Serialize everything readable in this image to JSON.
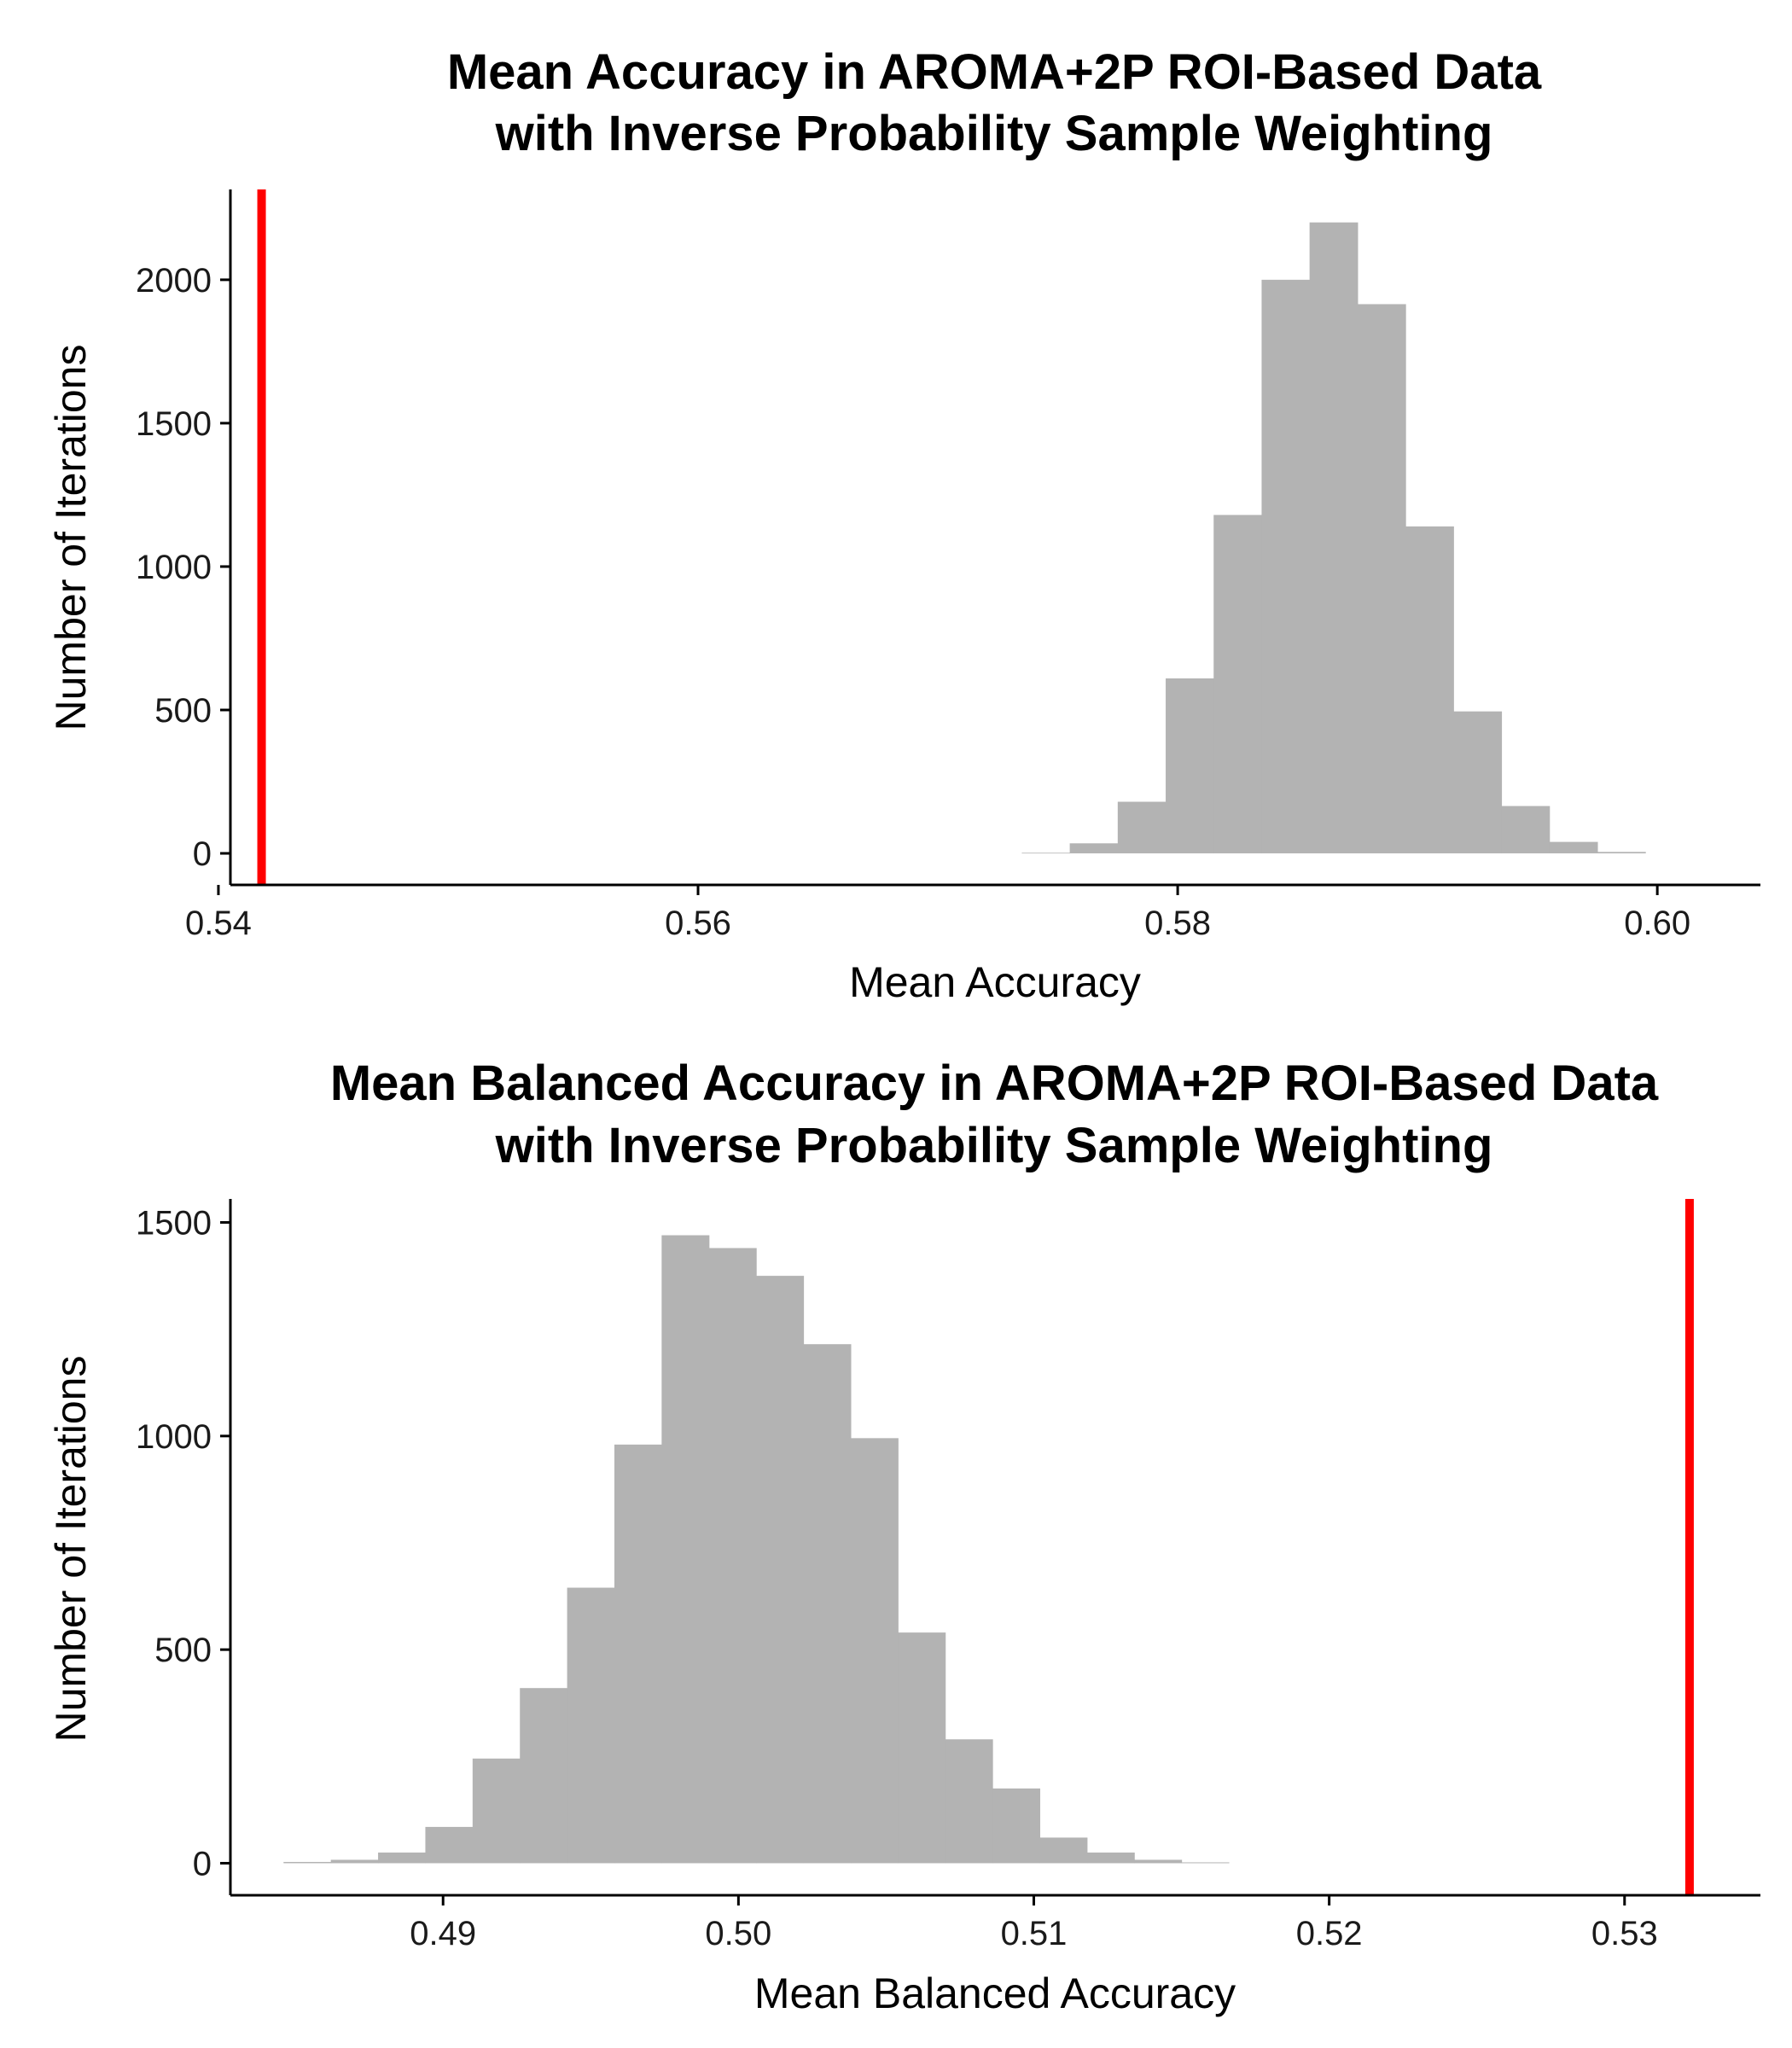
{
  "chart_data": [
    {
      "type": "bar",
      "title_lines": [
        "Mean Accuracy in AROMA+2P ROI-Based Data",
        "with Inverse Probability Sample Weighting"
      ],
      "xlabel": "Mean Accuracy",
      "ylabel": "Number of Iterations",
      "xlim": [
        0.5405,
        0.6043
      ],
      "ylim": [
        -110,
        2315
      ],
      "x_ticks": [
        0.54,
        0.56,
        0.58,
        0.6
      ],
      "x_tick_labels": [
        "0.54",
        "0.56",
        "0.58",
        "0.60"
      ],
      "y_ticks": [
        0,
        500,
        1000,
        1500,
        2000
      ],
      "y_tick_labels": [
        "0",
        "500",
        "1000",
        "1500",
        "2000"
      ],
      "bin_edges": [
        0.5735,
        0.5755,
        0.5775,
        0.5795,
        0.5815,
        0.5835,
        0.5855,
        0.5875,
        0.5895,
        0.5915,
        0.5935,
        0.5955,
        0.5975,
        0.5995
      ],
      "counts": [
        2,
        35,
        180,
        610,
        1180,
        2000,
        2200,
        1915,
        1140,
        495,
        165,
        40,
        5
      ],
      "observed_value": 0.5418,
      "bar_color": "#b3b3b3",
      "line_color": "#ff0000"
    },
    {
      "type": "bar",
      "title_lines": [
        "Mean Balanced Accuracy in AROMA+2P ROI-Based Data",
        "with Inverse Probability Sample Weighting"
      ],
      "xlabel": "Mean Balanced Accuracy",
      "ylabel": "Number of Iterations",
      "xlim": [
        0.4828,
        0.5346
      ],
      "ylim": [
        -75,
        1555
      ],
      "x_ticks": [
        0.49,
        0.5,
        0.51,
        0.52,
        0.53
      ],
      "x_tick_labels": [
        "0.49",
        "0.50",
        "0.51",
        "0.52",
        "0.53"
      ],
      "y_ticks": [
        0,
        500,
        1000,
        1500
      ],
      "y_tick_labels": [
        "0",
        "500",
        "1000",
        "1500"
      ],
      "bin_edges": [
        0.4846,
        0.4862,
        0.4878,
        0.4894,
        0.491,
        0.4926,
        0.4942,
        0.4958,
        0.4974,
        0.499,
        0.5006,
        0.5022,
        0.5038,
        0.5054,
        0.507,
        0.5086,
        0.5102,
        0.5118,
        0.5134,
        0.515,
        0.5166
      ],
      "counts": [
        3,
        8,
        25,
        85,
        245,
        410,
        645,
        980,
        1470,
        1440,
        1375,
        1215,
        995,
        540,
        290,
        175,
        60,
        25,
        8,
        2
      ],
      "observed_value": 0.5322,
      "bar_color": "#b3b3b3",
      "line_color": "#ff0000"
    }
  ]
}
